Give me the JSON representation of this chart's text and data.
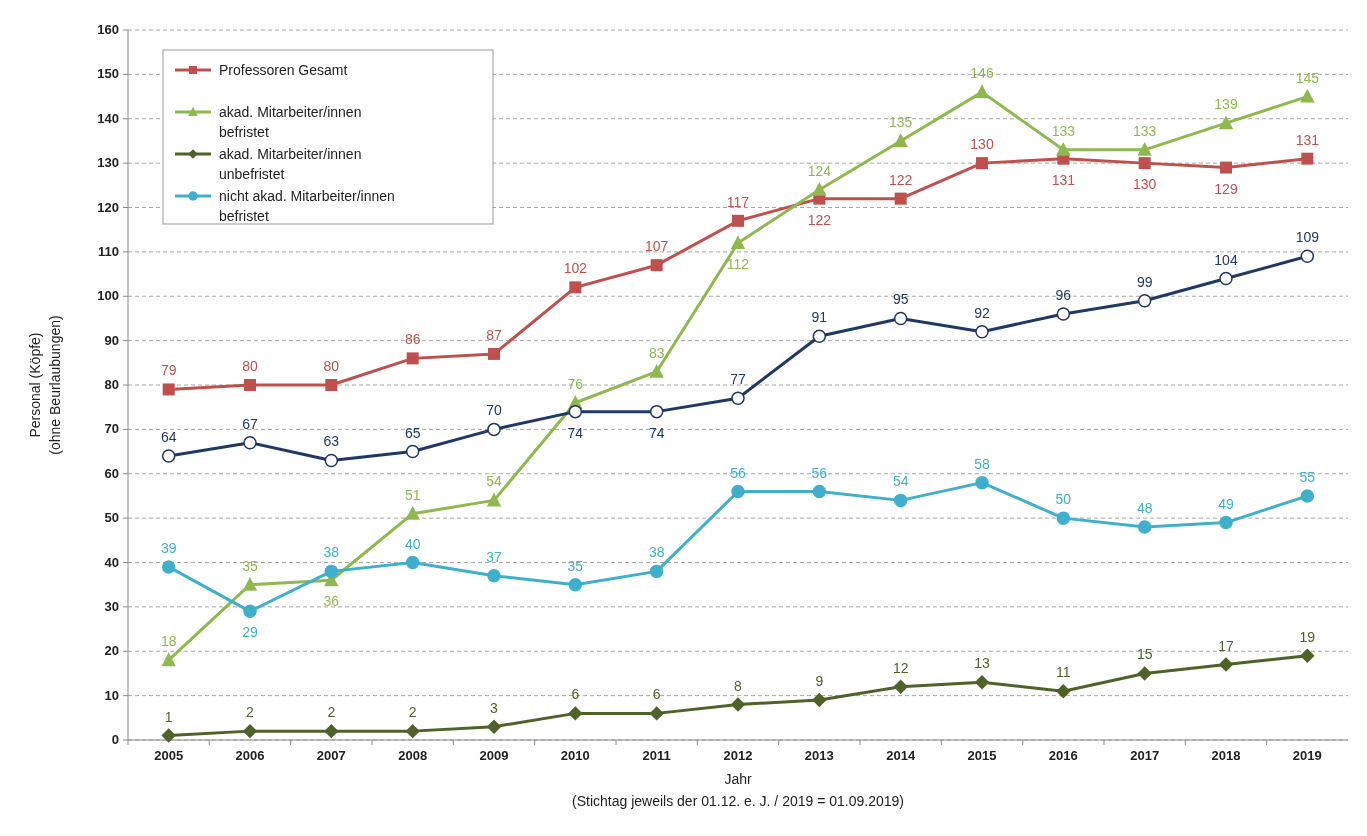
{
  "chart_data": {
    "type": "line",
    "xlabel": "Jahr",
    "ylabel": "Personal (Köpfe)\n(ohne  Beurlaubungen)",
    "categories": [
      "2005",
      "2006",
      "2007",
      "2008",
      "2009",
      "2010",
      "2011",
      "2012",
      "2013",
      "2014",
      "2015",
      "2016",
      "2017",
      "2018",
      "2019"
    ],
    "ylim": [
      0,
      160
    ],
    "yticks": [
      0,
      10,
      20,
      30,
      40,
      50,
      60,
      70,
      80,
      90,
      100,
      110,
      120,
      130,
      140,
      150,
      160
    ],
    "grid": "y",
    "legend": "top left",
    "data_labels": true,
    "series": [
      {
        "name": "Professoren Gesamt",
        "color": "#c0504d",
        "marker": "square",
        "values": [
          79,
          80,
          80,
          86,
          87,
          102,
          107,
          117,
          122,
          122,
          130,
          131,
          130,
          129,
          131
        ]
      },
      {
        "name": "akad. Mitarbeiter/innen befristet",
        "color": "#8fb84e",
        "marker": "triangle",
        "values": [
          18,
          35,
          36,
          51,
          54,
          76,
          83,
          112,
          124,
          135,
          146,
          133,
          133,
          139,
          145
        ]
      },
      {
        "name": "akad. Mitarbeiter/innen unbefristet",
        "color": "#4f6228",
        "marker": "diamond",
        "values": [
          1,
          2,
          2,
          2,
          3,
          6,
          6,
          8,
          9,
          12,
          13,
          11,
          15,
          17,
          19
        ]
      },
      {
        "name": "nicht akad. Mitarbeiter/innen befristet",
        "color": "#3fb0cc",
        "marker": "circle",
        "values": [
          39,
          29,
          38,
          40,
          37,
          35,
          38,
          56,
          56,
          54,
          58,
          50,
          48,
          49,
          55
        ]
      },
      {
        "color": "#1f3864",
        "marker": "circle",
        "values": [
          64,
          67,
          63,
          65,
          70,
          74,
          74,
          77,
          91,
          95,
          92,
          96,
          99,
          104,
          109
        ]
      }
    ],
    "annotations": [
      "(Stichtag jeweils der 01.12. e. J. / 2019 = 01.09.2019)"
    ]
  }
}
